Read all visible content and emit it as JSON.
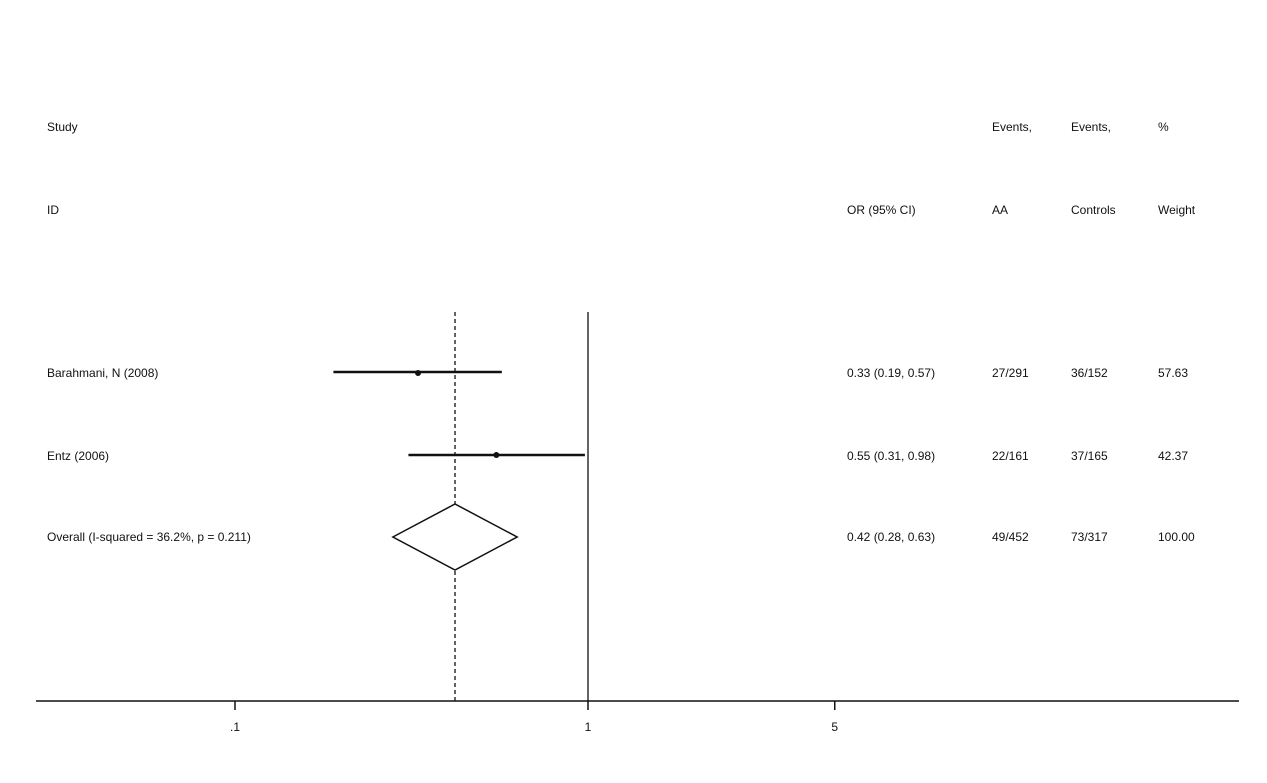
{
  "chart_data": {
    "type": "forest",
    "scale": "log",
    "x_ticks": [
      {
        "value": 0.1,
        "label": ".1"
      },
      {
        "value": 1,
        "label": "1"
      },
      {
        "value": 5,
        "label": "5"
      }
    ],
    "null_line": 1,
    "pooled_line": 0.42,
    "header_row1": {
      "study": "Study",
      "events_aa": "Events,",
      "events_controls": "Events,",
      "weight": "%"
    },
    "header_row2": {
      "id": "ID",
      "or_ci": "OR (95% CI)",
      "events_aa": "AA",
      "events_controls": "Controls",
      "weight": "Weight"
    },
    "studies": [
      {
        "label": "Barahmani, N (2008)",
        "or": 0.33,
        "lo": 0.19,
        "hi": 0.57,
        "or_text": "0.33 (0.19, 0.57)",
        "events_aa": "27/291",
        "events_controls": "36/152",
        "weight": "57.63"
      },
      {
        "label": "Entz (2006)",
        "or": 0.55,
        "lo": 0.31,
        "hi": 0.98,
        "or_text": "0.55 (0.31, 0.98)",
        "events_aa": "22/161",
        "events_controls": "37/165",
        "weight": "42.37"
      }
    ],
    "overall": {
      "label": "Overall  (I-squared = 36.2%, p = 0.211)",
      "or": 0.42,
      "lo": 0.28,
      "hi": 0.63,
      "or_text": "0.42 (0.28, 0.63)",
      "events_aa": "49/452",
      "events_controls": "73/317",
      "weight": "100.00"
    }
  }
}
